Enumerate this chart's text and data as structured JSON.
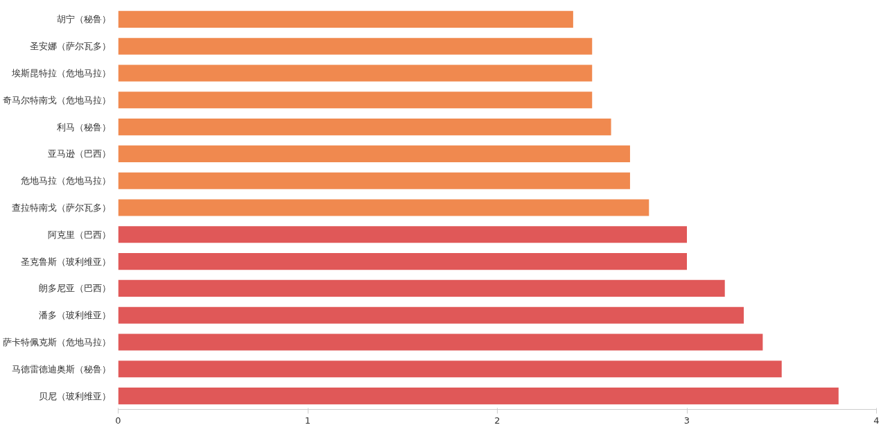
{
  "chart_data": {
    "type": "bar",
    "orientation": "horizontal",
    "categories": [
      "胡宁（秘鲁）",
      "圣安娜（萨尔瓦多）",
      "埃斯昆特拉（危地马拉）",
      "奇马尔特南戈（危地马拉）",
      "利马（秘鲁）",
      "亚马逊（巴西）",
      "危地马拉（危地马拉）",
      "查拉特南戈（萨尔瓦多）",
      "阿克里（巴西）",
      "圣克鲁斯（玻利维亚）",
      "朗多尼亚（巴西）",
      "潘多（玻利维亚）",
      "萨卡特佩克斯（危地马拉）",
      "马德雷德迪奥斯（秘鲁）",
      "贝尼（玻利维亚）"
    ],
    "values": [
      2.4,
      2.5,
      2.5,
      2.5,
      2.6,
      2.7,
      2.7,
      2.8,
      3.0,
      3.0,
      3.2,
      3.3,
      3.4,
      3.5,
      3.8
    ],
    "colors": [
      "#f0894f",
      "#f0894f",
      "#f0894f",
      "#f0894f",
      "#f0894f",
      "#f0894f",
      "#f0894f",
      "#f0894f",
      "#e05858",
      "#e05858",
      "#e05858",
      "#e05858",
      "#e05858",
      "#e05858",
      "#e05858"
    ],
    "xlim": [
      0,
      4
    ],
    "xticks": [
      0,
      1,
      2,
      3,
      4
    ],
    "grid": false
  }
}
